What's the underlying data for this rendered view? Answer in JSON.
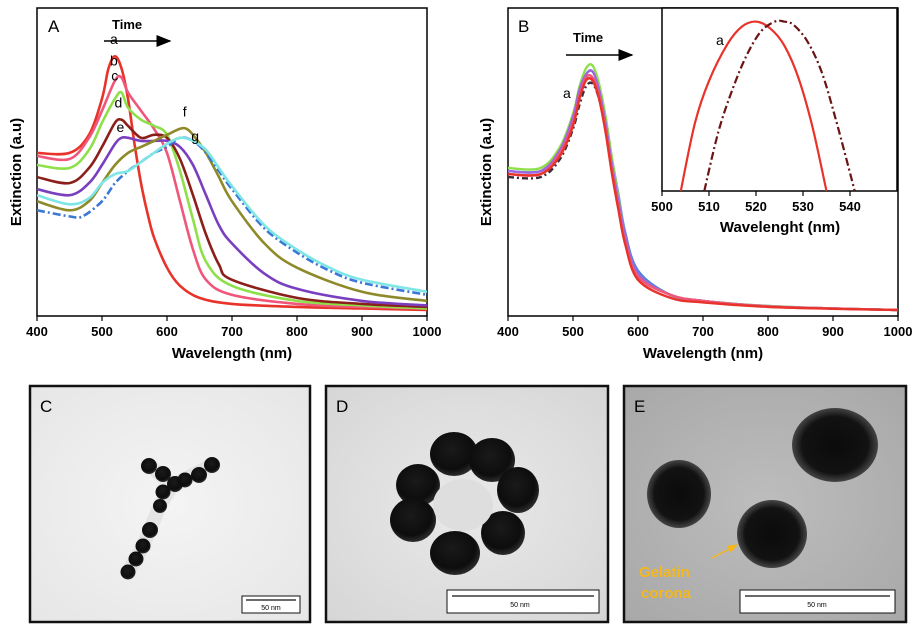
{
  "chart_data": [
    {
      "type": "line",
      "panel": "A",
      "time_label": "Time",
      "xlabel": "Wavelength (nm)",
      "ylabel": "Extinction (a.u)",
      "xlim": [
        400,
        1000
      ],
      "ylim": [
        0,
        1.0
      ],
      "xticks": [
        400,
        500,
        600,
        700,
        800,
        900,
        1000
      ],
      "grid": false,
      "series": [
        {
          "name": "a",
          "color": "#e8332a",
          "dash": "",
          "x": [
            400,
            450,
            480,
            500,
            510,
            520,
            530,
            540,
            550,
            560,
            570,
            580,
            600,
            620,
            650,
            700,
            800,
            900,
            1000
          ],
          "y": [
            0.52,
            0.52,
            0.58,
            0.7,
            0.8,
            0.84,
            0.8,
            0.7,
            0.55,
            0.42,
            0.32,
            0.24,
            0.14,
            0.08,
            0.04,
            0.02,
            0.01,
            0.005,
            0.0
          ]
        },
        {
          "name": "b",
          "color": "#f0567a",
          "dash": "",
          "x": [
            400,
            450,
            480,
            500,
            520,
            530,
            540,
            560,
            580,
            600,
            620,
            640,
            660,
            700,
            800,
            900,
            1000
          ],
          "y": [
            0.51,
            0.5,
            0.57,
            0.66,
            0.76,
            0.77,
            0.72,
            0.66,
            0.6,
            0.52,
            0.36,
            0.2,
            0.1,
            0.05,
            0.02,
            0.01,
            0.005
          ]
        },
        {
          "name": "c",
          "color": "#8ee04a",
          "dash": "",
          "x": [
            400,
            450,
            480,
            500,
            520,
            530,
            540,
            560,
            580,
            600,
            620,
            640,
            660,
            700,
            800,
            900,
            1000
          ],
          "y": [
            0.48,
            0.47,
            0.53,
            0.62,
            0.7,
            0.72,
            0.67,
            0.63,
            0.61,
            0.58,
            0.46,
            0.3,
            0.16,
            0.08,
            0.03,
            0.015,
            0.005
          ]
        },
        {
          "name": "d",
          "color": "#8b1f1a",
          "dash": "",
          "x": [
            400,
            450,
            480,
            500,
            520,
            530,
            540,
            560,
            580,
            600,
            620,
            640,
            660,
            680,
            700,
            800,
            900,
            1000
          ],
          "y": [
            0.44,
            0.42,
            0.47,
            0.54,
            0.62,
            0.63,
            0.61,
            0.57,
            0.58,
            0.57,
            0.5,
            0.38,
            0.25,
            0.15,
            0.1,
            0.04,
            0.02,
            0.01
          ]
        },
        {
          "name": "e",
          "color": "#7a3fbf",
          "dash": "",
          "x": [
            400,
            450,
            480,
            500,
            520,
            530,
            540,
            560,
            580,
            600,
            620,
            640,
            660,
            680,
            700,
            750,
            800,
            900,
            1000
          ],
          "y": [
            0.4,
            0.38,
            0.42,
            0.48,
            0.55,
            0.57,
            0.57,
            0.56,
            0.56,
            0.56,
            0.54,
            0.48,
            0.38,
            0.28,
            0.22,
            0.12,
            0.07,
            0.03,
            0.015
          ]
        },
        {
          "name": "f",
          "color": "#8e8a2a",
          "dash": "",
          "x": [
            400,
            450,
            480,
            500,
            520,
            540,
            560,
            580,
            600,
            620,
            630,
            640,
            660,
            680,
            700,
            750,
            800,
            900,
            1000
          ],
          "y": [
            0.36,
            0.33,
            0.36,
            0.42,
            0.48,
            0.52,
            0.54,
            0.56,
            0.58,
            0.6,
            0.6,
            0.58,
            0.52,
            0.44,
            0.36,
            0.22,
            0.14,
            0.06,
            0.03
          ]
        },
        {
          "name": "g",
          "color": "#3b78d6",
          "dash": "8,3,2,3",
          "x": [
            400,
            450,
            470,
            500,
            520,
            540,
            560,
            580,
            600,
            620,
            640,
            660,
            680,
            700,
            750,
            800,
            850,
            900,
            1000
          ],
          "y": [
            0.33,
            0.31,
            0.31,
            0.36,
            0.42,
            0.46,
            0.49,
            0.52,
            0.54,
            0.57,
            0.56,
            0.52,
            0.46,
            0.4,
            0.27,
            0.19,
            0.13,
            0.09,
            0.05
          ]
        },
        {
          "name": "",
          "color": "#7fe6e6",
          "dash": "",
          "x": [
            400,
            450,
            480,
            500,
            520,
            540,
            560,
            580,
            600,
            620,
            640,
            660,
            680,
            700,
            750,
            800,
            850,
            900,
            1000
          ],
          "y": [
            0.38,
            0.35,
            0.37,
            0.42,
            0.45,
            0.46,
            0.49,
            0.52,
            0.55,
            0.57,
            0.56,
            0.53,
            0.47,
            0.41,
            0.28,
            0.2,
            0.14,
            0.1,
            0.06
          ]
        }
      ],
      "curve_labels": [
        "a",
        "b",
        "c",
        "d",
        "e",
        "f",
        "g"
      ]
    },
    {
      "type": "line",
      "panel": "B",
      "time_label": "Time",
      "xlabel": "Wavelength (nm)",
      "ylabel": "Extinction (a.u)",
      "xlim": [
        400,
        1000
      ],
      "ylim": [
        0,
        1.0
      ],
      "xticks": [
        400,
        500,
        600,
        700,
        800,
        900,
        1000
      ],
      "grid": false,
      "series": [
        {
          "name": "",
          "color": "#3a2a3a",
          "dash": "6,3,2,3",
          "x": [
            400,
            450,
            480,
            500,
            510,
            520,
            530,
            540,
            550,
            560,
            570,
            580,
            600,
            650,
            700,
            800,
            900,
            1000
          ],
          "y": [
            0.44,
            0.44,
            0.5,
            0.6,
            0.68,
            0.74,
            0.75,
            0.7,
            0.6,
            0.47,
            0.35,
            0.24,
            0.12,
            0.05,
            0.03,
            0.012,
            0.005,
            0.0
          ]
        },
        {
          "name": "",
          "color": "#4a7fd8",
          "dash": "",
          "x": [
            400,
            450,
            480,
            500,
            510,
            520,
            530,
            540,
            550,
            560,
            570,
            580,
            600,
            650,
            700,
            800,
            900,
            1000
          ],
          "y": [
            0.46,
            0.46,
            0.52,
            0.63,
            0.72,
            0.78,
            0.79,
            0.74,
            0.64,
            0.5,
            0.38,
            0.26,
            0.13,
            0.05,
            0.03,
            0.013,
            0.005,
            0.0
          ]
        },
        {
          "name": "",
          "color": "#8ee04a",
          "dash": "",
          "x": [
            400,
            450,
            480,
            500,
            510,
            520,
            530,
            540,
            550,
            560,
            570,
            580,
            600,
            650,
            700,
            800,
            900,
            1000
          ],
          "y": [
            0.47,
            0.47,
            0.54,
            0.65,
            0.74,
            0.8,
            0.81,
            0.75,
            0.64,
            0.5,
            0.37,
            0.25,
            0.12,
            0.05,
            0.03,
            0.013,
            0.005,
            0.0
          ]
        },
        {
          "name": "",
          "color": "#a066e0",
          "dash": "",
          "x": [
            400,
            450,
            480,
            500,
            510,
            520,
            530,
            540,
            550,
            560,
            570,
            580,
            600,
            650,
            700,
            800,
            900,
            1000
          ],
          "y": [
            0.46,
            0.46,
            0.53,
            0.64,
            0.73,
            0.78,
            0.79,
            0.73,
            0.62,
            0.48,
            0.36,
            0.25,
            0.12,
            0.05,
            0.03,
            0.012,
            0.005,
            0.0
          ]
        },
        {
          "name": "",
          "color": "#f0567a",
          "dash": "",
          "x": [
            400,
            450,
            480,
            500,
            510,
            520,
            530,
            540,
            550,
            560,
            570,
            580,
            600,
            650,
            700,
            800,
            900,
            1000
          ],
          "y": [
            0.45,
            0.45,
            0.52,
            0.62,
            0.71,
            0.77,
            0.77,
            0.71,
            0.6,
            0.46,
            0.34,
            0.23,
            0.11,
            0.05,
            0.03,
            0.012,
            0.005,
            0.0
          ]
        },
        {
          "name": "a",
          "color": "#e8332a",
          "dash": "",
          "x": [
            400,
            450,
            480,
            500,
            510,
            520,
            530,
            540,
            550,
            560,
            570,
            580,
            600,
            650,
            700,
            800,
            900,
            1000
          ],
          "y": [
            0.45,
            0.45,
            0.51,
            0.61,
            0.7,
            0.76,
            0.76,
            0.7,
            0.59,
            0.45,
            0.33,
            0.22,
            0.1,
            0.04,
            0.025,
            0.01,
            0.004,
            0.0
          ]
        }
      ],
      "inset": {
        "xlabel": "Wavelenght (nm)",
        "xlim": [
          500,
          550
        ],
        "xticks": [
          500,
          510,
          520,
          530,
          540
        ],
        "curve_label": "a",
        "series": [
          {
            "name": "a",
            "color": "#e8332a",
            "dash": "",
            "x": [
              504,
              507,
              510,
              514,
              517,
              520,
              523,
              526,
              529,
              532,
              535
            ],
            "y": [
              0.0,
              0.4,
              0.65,
              0.87,
              0.97,
              1.0,
              0.96,
              0.86,
              0.67,
              0.38,
              0.0
            ]
          },
          {
            "name": "",
            "color": "#6b1414",
            "dash": "8,3,2,3",
            "x": [
              509,
              512,
              515,
              518,
              521,
              524,
              526,
              528,
              531,
              534,
              537,
              541
            ],
            "y": [
              0.0,
              0.35,
              0.6,
              0.8,
              0.94,
              1.0,
              1.0,
              0.98,
              0.88,
              0.7,
              0.42,
              0.0
            ]
          }
        ]
      }
    }
  ],
  "images": [
    {
      "panel": "C",
      "scale_bar": "50 nm"
    },
    {
      "panel": "D",
      "scale_bar": "50 nm"
    },
    {
      "panel": "E",
      "scale_bar": "50 nm",
      "annotation": [
        "Gelatin",
        "corona"
      ]
    }
  ]
}
